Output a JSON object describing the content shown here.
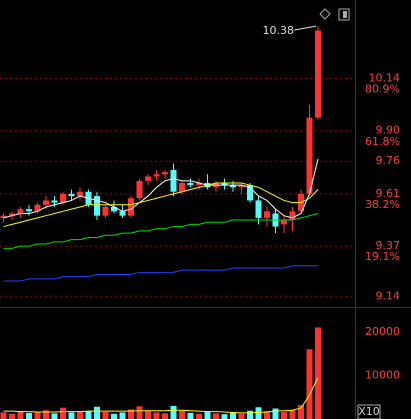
{
  "chart_data": {
    "type": "candlestick",
    "up_color": "#ff3232",
    "down_color": "#54fcfc",
    "grid": true,
    "ylim": [
      9.1,
      10.5
    ],
    "yticks": [
      10.14,
      {
        "value": 9.9,
        "label": "9.90"
      },
      9.76,
      9.61,
      9.37,
      9.14
    ],
    "fib_levels": [
      {
        "value": 10.09,
        "label": "80.9%"
      },
      {
        "value": 9.848,
        "label": "61.8%"
      },
      {
        "value": 9.559,
        "label": "38.2%"
      },
      {
        "value": 9.32,
        "label": "19.1%"
      }
    ],
    "candles": {
      "open": [
        9.5,
        9.51,
        9.52,
        9.54,
        9.53,
        9.56,
        9.58,
        9.57,
        9.61,
        9.6,
        9.62,
        9.6,
        9.51,
        9.55,
        9.53,
        9.51,
        9.59,
        9.67,
        9.69,
        9.7,
        9.72,
        9.62,
        9.66,
        9.65,
        9.66,
        9.64,
        9.66,
        9.65,
        9.64,
        9.65,
        9.58,
        9.5,
        9.52,
        9.47,
        9.49,
        9.53,
        9.61,
        9.96
      ],
      "high": [
        9.52,
        9.53,
        9.55,
        9.56,
        9.57,
        9.6,
        9.6,
        9.62,
        9.63,
        9.64,
        9.63,
        9.62,
        9.56,
        9.58,
        9.56,
        9.6,
        9.68,
        9.7,
        9.72,
        9.72,
        9.75,
        9.67,
        9.68,
        9.68,
        9.7,
        9.67,
        9.68,
        9.67,
        9.66,
        9.66,
        9.6,
        9.55,
        9.54,
        9.51,
        9.55,
        9.63,
        10.02,
        10.38
      ],
      "low": [
        9.48,
        9.49,
        9.5,
        9.51,
        9.52,
        9.54,
        9.55,
        9.56,
        9.58,
        9.58,
        9.55,
        9.49,
        9.5,
        9.52,
        9.5,
        9.5,
        9.58,
        9.65,
        9.67,
        9.68,
        9.6,
        9.61,
        9.64,
        9.63,
        9.63,
        9.62,
        9.63,
        9.62,
        9.61,
        9.57,
        9.47,
        9.46,
        9.43,
        9.43,
        9.44,
        9.52,
        9.6,
        9.95
      ],
      "close": [
        9.51,
        9.52,
        9.54,
        9.53,
        9.56,
        9.58,
        9.57,
        9.61,
        9.6,
        9.62,
        9.56,
        9.51,
        9.55,
        9.53,
        9.51,
        9.59,
        9.67,
        9.69,
        9.7,
        9.71,
        9.62,
        9.66,
        9.65,
        9.66,
        9.64,
        9.66,
        9.65,
        9.64,
        9.65,
        9.58,
        9.5,
        9.53,
        9.46,
        9.49,
        9.53,
        9.61,
        9.96,
        10.36
      ]
    },
    "moving_averages": [
      {
        "color": "#ffffff",
        "values": [
          9.5,
          9.51,
          9.52,
          9.52,
          9.53,
          9.55,
          9.56,
          9.57,
          9.58,
          9.6,
          9.59,
          9.58,
          9.57,
          9.55,
          9.53,
          9.54,
          9.57,
          9.6,
          9.64,
          9.67,
          9.68,
          9.67,
          9.67,
          9.66,
          9.65,
          9.65,
          9.65,
          9.65,
          9.65,
          9.64,
          9.6,
          9.58,
          9.54,
          9.51,
          9.5,
          9.52,
          9.61,
          9.77
        ]
      },
      {
        "color": "#ffff00",
        "values": [
          9.46,
          9.47,
          9.48,
          9.49,
          9.5,
          9.51,
          9.52,
          9.53,
          9.54,
          9.55,
          9.56,
          9.56,
          9.56,
          9.56,
          9.56,
          9.56,
          9.57,
          9.58,
          9.59,
          9.6,
          9.61,
          9.62,
          9.63,
          9.64,
          9.65,
          9.66,
          9.66,
          9.66,
          9.66,
          9.65,
          9.64,
          9.62,
          9.6,
          9.58,
          9.57,
          9.57,
          9.59,
          9.63
        ]
      },
      {
        "color": "#00e000",
        "values": [
          9.36,
          9.36,
          9.37,
          9.37,
          9.38,
          9.38,
          9.39,
          9.39,
          9.4,
          9.4,
          9.41,
          9.41,
          9.42,
          9.42,
          9.43,
          9.43,
          9.44,
          9.44,
          9.45,
          9.45,
          9.46,
          9.46,
          9.47,
          9.47,
          9.48,
          9.48,
          9.48,
          9.49,
          9.49,
          9.49,
          9.49,
          9.49,
          9.49,
          9.49,
          9.49,
          9.5,
          9.51,
          9.52
        ]
      },
      {
        "color": "#2040ff",
        "values": [
          9.21,
          9.21,
          9.21,
          9.22,
          9.22,
          9.22,
          9.22,
          9.23,
          9.23,
          9.23,
          9.23,
          9.24,
          9.24,
          9.24,
          9.24,
          9.24,
          9.25,
          9.25,
          9.25,
          9.25,
          9.25,
          9.26,
          9.26,
          9.26,
          9.26,
          9.26,
          9.26,
          9.27,
          9.27,
          9.27,
          9.27,
          9.27,
          9.27,
          9.27,
          9.28,
          9.28,
          9.28,
          9.28
        ]
      }
    ],
    "volume": {
      "ylim": [
        0,
        25000
      ],
      "yticks": [
        20000,
        10000
      ],
      "multiplier_label": "X10",
      "values": [
        1500,
        1200,
        1800,
        1400,
        1600,
        2000,
        1300,
        2600,
        1500,
        1700,
        1800,
        2800,
        1600,
        1200,
        1500,
        2200,
        2900,
        1800,
        1500,
        1300,
        3000,
        1900,
        1400,
        1200,
        1600,
        1300,
        1100,
        1400,
        1200,
        1900,
        2700,
        1800,
        2400,
        1600,
        2000,
        3200,
        16000,
        21000
      ],
      "ma_color": "#ffff00",
      "ma_values": [
        1800,
        1800,
        1700,
        1700,
        1600,
        1600,
        1600,
        1700,
        1700,
        1700,
        1800,
        1800,
        1800,
        1800,
        1800,
        1800,
        1900,
        1900,
        1900,
        1900,
        2000,
        2000,
        1900,
        1800,
        1700,
        1700,
        1600,
        1500,
        1400,
        1400,
        1500,
        1600,
        1800,
        1900,
        2000,
        2500,
        5500,
        9500
      ]
    }
  }
}
